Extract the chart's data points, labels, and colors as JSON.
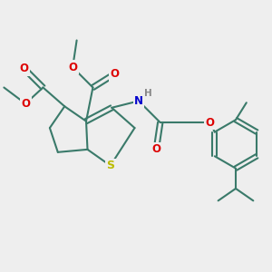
{
  "bg_color": "#eeeeee",
  "bond_color": "#3a7a6a",
  "bond_width": 1.5,
  "atom_colors": {
    "O": "#dd0000",
    "N": "#0000cc",
    "S": "#bbbb00",
    "H": "#888888"
  },
  "figsize": [
    3.0,
    3.0
  ],
  "dpi": 100
}
